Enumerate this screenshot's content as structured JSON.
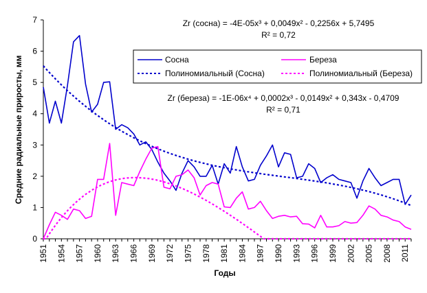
{
  "chart_data": {
    "type": "line",
    "xlabel": "Годы",
    "ylabel": "Средние радиальные приросты, мм",
    "xlim": [
      1951,
      2012
    ],
    "ylim": [
      0,
      7
    ],
    "yticks": [
      0,
      1,
      2,
      3,
      4,
      5,
      6,
      7
    ],
    "xticks": [
      1951,
      1954,
      1957,
      1960,
      1963,
      1966,
      1969,
      1972,
      1975,
      1978,
      1981,
      1984,
      1987,
      1990,
      1993,
      1996,
      1999,
      2002,
      2005,
      2008,
      2011
    ],
    "grid": false,
    "legend_position": "top-right",
    "x": [
      1951,
      1952,
      1953,
      1954,
      1955,
      1956,
      1957,
      1958,
      1959,
      1960,
      1961,
      1962,
      1963,
      1964,
      1965,
      1966,
      1967,
      1968,
      1969,
      1970,
      1971,
      1972,
      1973,
      1974,
      1975,
      1976,
      1977,
      1978,
      1979,
      1980,
      1981,
      1982,
      1983,
      1984,
      1985,
      1986,
      1987,
      1988,
      1989,
      1990,
      1991,
      1992,
      1993,
      1994,
      1995,
      1996,
      1997,
      1998,
      1999,
      2000,
      2001,
      2002,
      2003,
      2004,
      2005,
      2006,
      2007,
      2008,
      2009,
      2010,
      2011,
      2012
    ],
    "series": [
      {
        "name": "Сосна",
        "color": "#0000cc",
        "style": "solid",
        "values": [
          4.85,
          3.7,
          4.4,
          3.7,
          4.9,
          6.3,
          6.5,
          4.95,
          4.05,
          4.3,
          5.0,
          5.02,
          3.5,
          3.65,
          3.55,
          3.35,
          3.0,
          3.1,
          2.85,
          2.45,
          2.1,
          1.85,
          1.55,
          2.1,
          2.5,
          2.3,
          2.0,
          2.0,
          2.35,
          1.75,
          2.4,
          2.1,
          2.95,
          2.3,
          1.85,
          1.9,
          2.35,
          2.65,
          3.0,
          2.3,
          2.75,
          2.7,
          1.95,
          2.0,
          2.4,
          2.25,
          1.8,
          1.95,
          2.05,
          1.9,
          1.85,
          1.8,
          1.3,
          1.85,
          2.25,
          1.95,
          1.7,
          1.8,
          1.9,
          1.9,
          1.1,
          1.4
        ]
      },
      {
        "name": "Береза",
        "color": "#ff00ff",
        "style": "solid",
        "values": [
          0.0,
          0.45,
          0.85,
          0.75,
          0.62,
          0.95,
          0.9,
          0.65,
          0.72,
          1.9,
          1.9,
          3.05,
          0.75,
          1.8,
          1.75,
          1.7,
          2.15,
          2.55,
          2.9,
          2.95,
          1.65,
          1.6,
          2.0,
          2.05,
          2.2,
          1.95,
          1.4,
          1.7,
          1.8,
          1.75,
          1.02,
          1.0,
          1.3,
          1.5,
          0.95,
          1.0,
          1.2,
          0.9,
          0.65,
          0.72,
          0.75,
          0.7,
          0.72,
          0.48,
          0.47,
          0.35,
          0.75,
          0.38,
          0.38,
          0.42,
          0.55,
          0.5,
          0.52,
          0.75,
          1.05,
          0.95,
          0.75,
          0.7,
          0.6,
          0.55,
          0.38,
          0.3
        ]
      },
      {
        "name": "Полиномиальный (Сосна)",
        "color": "#0000cc",
        "style": "dashed",
        "equation": {
          "a3": -4e-05,
          "a2": 0.0049,
          "a1": -0.2256,
          "a0": 5.7495
        }
      },
      {
        "name": "Полиномиальный (Береза)",
        "color": "#ff00ff",
        "style": "dashed",
        "equation": {
          "a4": -1e-06,
          "a3": 0.0002,
          "a2": -0.0149,
          "a1": 0.343,
          "a0": -0.4709
        }
      }
    ],
    "annotations": {
      "pine_equation": "Zr (сосна) = -4E-05x³ + 0,0049x² - 0,2256x + 5,7495",
      "pine_r2": "R² = 0,72",
      "birch_equation": "Zr (береза) = -1E-06x⁴ + 0,0002x³ - 0,0149x² + 0,343x - 0,4709",
      "birch_r2": "R² = 0,71"
    }
  }
}
